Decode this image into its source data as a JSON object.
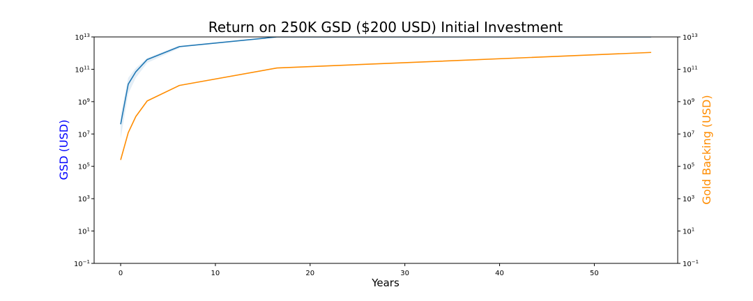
{
  "chart_data": {
    "type": "line",
    "title": "Return on 250K GSD ($200 USD) Initial Investment",
    "xlabel": "Years",
    "ylabel_left": "GSD (USD)",
    "ylabel_right": "Gold Backing (USD)",
    "xlim": [
      -2.8,
      58.8
    ],
    "ylim_log10": [
      -1,
      13
    ],
    "yscale": "log",
    "x_ticks": [
      0,
      10,
      20,
      30,
      40,
      50
    ],
    "y_tick_exponents": [
      -1,
      1,
      3,
      5,
      7,
      9,
      11,
      13
    ],
    "grid": false,
    "colors": {
      "gsd": "#1f77b4",
      "gold": "#ff8c00",
      "band": "#1f77b4",
      "ylabel_left": "#0000ff",
      "ylabel_right": "#ff8c00",
      "axis": "#000000"
    },
    "series": [
      {
        "key": "gsd",
        "x": [
          0,
          0.8,
          1.6,
          2.8,
          6.2,
          16.5,
          56
        ],
        "y": [
          40000000.0,
          12000000000.0,
          70000000000.0,
          400000000000.0,
          2500000000000.0,
          14000000000000.0,
          85000000000000.0
        ]
      },
      {
        "key": "gold",
        "x": [
          0,
          0.8,
          1.6,
          2.8,
          6.2,
          16.5,
          56
        ],
        "y": [
          250000.0,
          12000000.0,
          120000000.0,
          1100000000.0,
          10000000000.0,
          120000000000.0,
          1100000000000.0
        ]
      }
    ],
    "gsd_band": {
      "x": [
        0,
        0.8,
        1.6,
        2.8,
        6.2
      ],
      "low": [
        5000000.0,
        3000000000.0,
        30000000000.0,
        250000000000.0,
        2000000000000.0
      ],
      "high": [
        150000000.0,
        30000000000.0,
        120000000000.0,
        500000000000.0,
        3000000000000.0
      ]
    }
  }
}
